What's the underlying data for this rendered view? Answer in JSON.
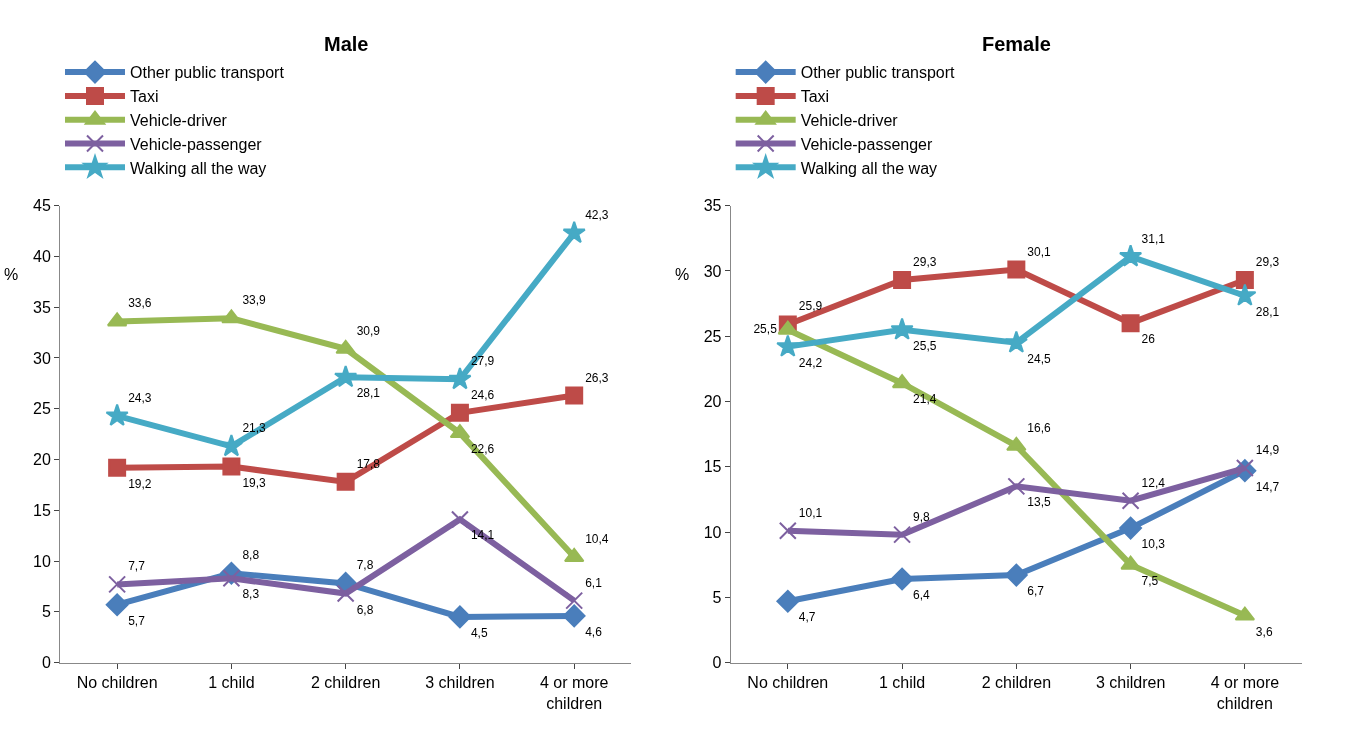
{
  "chart_data": [
    {
      "type": "line",
      "title": "Male",
      "ylabel": "%",
      "categories": [
        "No children",
        "1 child",
        "2 children",
        "3 children",
        "4 or more children"
      ],
      "ylim": [
        0,
        45
      ],
      "yticks": [
        0,
        5,
        10,
        15,
        20,
        25,
        30,
        35,
        40,
        45
      ],
      "grid": false,
      "legend": "top",
      "line_style": "solid",
      "series": [
        {
          "name": "Other public transport",
          "color": "#4a7ebb",
          "marker": "diamond",
          "values": [
            5.7,
            8.8,
            7.8,
            4.5,
            4.6
          ],
          "value_labels": [
            "5,7",
            "8,8",
            "7,8",
            "4,5",
            "4,6"
          ]
        },
        {
          "name": "Taxi",
          "color": "#be4b48",
          "marker": "square",
          "values": [
            19.2,
            19.3,
            17.8,
            24.6,
            26.3
          ],
          "value_labels": [
            "19,2",
            "19,3",
            "17,8",
            "24,6",
            "26,3"
          ]
        },
        {
          "name": "Vehicle-driver",
          "color": "#98b954",
          "marker": "triangle",
          "values": [
            33.6,
            33.9,
            30.9,
            22.6,
            10.4
          ],
          "value_labels": [
            "33,6",
            "33,9",
            "30,9",
            "22,6",
            "10,4"
          ]
        },
        {
          "name": "Vehicle-passenger",
          "color": "#7d60a0",
          "marker": "cross",
          "values": [
            7.7,
            8.3,
            6.8,
            14.1,
            6.1
          ],
          "value_labels": [
            "7,7",
            "8,3",
            "6,8",
            "14,1",
            "6,1"
          ]
        },
        {
          "name": "Walking all the way",
          "color": "#46aac5",
          "marker": "star",
          "values": [
            24.3,
            21.3,
            28.1,
            27.9,
            42.3
          ],
          "value_labels": [
            "24,3",
            "21,3",
            "28,1",
            "27,9",
            "42,3"
          ]
        }
      ]
    },
    {
      "type": "line",
      "title": "Female",
      "ylabel": "%",
      "categories": [
        "No children",
        "1 child",
        "2 children",
        "3 children",
        "4 or more children"
      ],
      "ylim": [
        0,
        35
      ],
      "yticks": [
        0,
        5,
        10,
        15,
        20,
        25,
        30,
        35
      ],
      "grid": false,
      "legend": "top",
      "line_style": "solid",
      "series": [
        {
          "name": "Other public transport",
          "color": "#4a7ebb",
          "marker": "diamond",
          "values": [
            4.7,
            6.4,
            6.7,
            10.3,
            14.7
          ],
          "value_labels": [
            "4,7",
            "6,4",
            "6,7",
            "10,3",
            "14,7"
          ]
        },
        {
          "name": "Taxi",
          "color": "#be4b48",
          "marker": "square",
          "values": [
            25.9,
            29.3,
            30.1,
            26,
            29.3
          ],
          "value_labels": [
            "25,9",
            "29,3",
            "30,1",
            "26",
            "29,3"
          ]
        },
        {
          "name": "Vehicle-driver",
          "color": "#98b954",
          "marker": "triangle",
          "values": [
            25.5,
            21.4,
            16.6,
            7.5,
            3.6
          ],
          "value_labels": [
            "25,5",
            "21,4",
            "16,6",
            "7,5",
            "3,6"
          ]
        },
        {
          "name": "Vehicle-passenger",
          "color": "#7d60a0",
          "marker": "cross",
          "values": [
            10.1,
            9.8,
            13.5,
            12.4,
            14.9
          ],
          "value_labels": [
            "10,1",
            "9,8",
            "13,5",
            "12,4",
            "14,9"
          ]
        },
        {
          "name": "Walking all the way",
          "color": "#46aac5",
          "marker": "star",
          "values": [
            24.2,
            25.5,
            24.5,
            31.1,
            28.1
          ],
          "value_labels": [
            "24,2",
            "25,5",
            "24,5",
            "31,1",
            "28,1"
          ]
        }
      ]
    }
  ]
}
